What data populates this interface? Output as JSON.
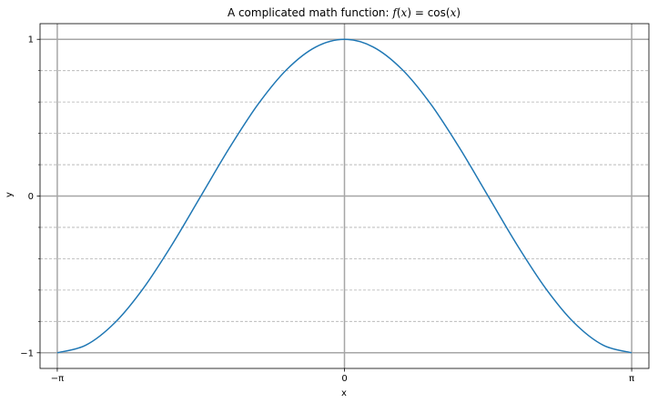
{
  "chart_data": {
    "type": "line",
    "title": "A complicated math function: f(x) = cos(x)",
    "title_parts": {
      "prefix": "A complicated math function: ",
      "lhs_f": "f",
      "lhs_open": "(",
      "lhs_x": "x",
      "lhs_close": ")",
      "eq": " = ",
      "rhs_cos": "cos",
      "rhs_open": "(",
      "rhs_x": "x",
      "rhs_close": ")"
    },
    "xlabel": "x",
    "ylabel": "y",
    "xlim": [
      -3.33,
      3.33
    ],
    "ylim": [
      -1.1,
      1.1
    ],
    "xticks": [
      {
        "value": -3.14159265,
        "label": "−π"
      },
      {
        "value": 0,
        "label": "0"
      },
      {
        "value": 3.14159265,
        "label": "π"
      }
    ],
    "yticks": [
      {
        "value": -1,
        "label": "−1"
      },
      {
        "value": 0,
        "label": "0"
      },
      {
        "value": 1,
        "label": "1"
      }
    ],
    "y_minor_ticks": [
      -0.8,
      -0.6,
      -0.4,
      -0.2,
      0.2,
      0.4,
      0.6,
      0.8
    ],
    "grid": {
      "major": true,
      "minor_y": true
    },
    "series": [
      {
        "color": "#1f77b4",
        "x": [
          -3.1416,
          -2.8274,
          -2.5133,
          -2.1991,
          -1.885,
          -1.5708,
          -1.2566,
          -0.9425,
          -0.6283,
          -0.3142,
          0.0,
          0.3142,
          0.6283,
          0.9425,
          1.2566,
          1.5708,
          1.885,
          2.1991,
          2.5133,
          2.8274,
          3.1416
        ],
        "y": [
          -1.0,
          -0.9511,
          -0.809,
          -0.5878,
          -0.309,
          0.0,
          0.309,
          0.5878,
          0.809,
          0.9511,
          1.0,
          0.9511,
          0.809,
          0.5878,
          0.309,
          0.0,
          -0.309,
          -0.5878,
          -0.809,
          -0.9511,
          -1.0
        ]
      }
    ]
  }
}
